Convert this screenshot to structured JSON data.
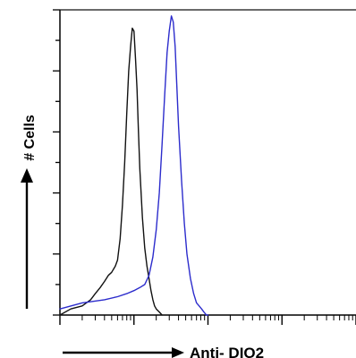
{
  "chart_data": {
    "type": "line",
    "title": "",
    "xlabel": "Anti- DIO2",
    "ylabel": "# Cells",
    "xscale": "log",
    "xlim": [
      1,
      10000
    ],
    "ylim": [
      0,
      100
    ],
    "grid": false,
    "legend": "none",
    "series": [
      {
        "color": "#111111",
        "x": [
          1,
          1.4,
          2,
          2.6,
          3,
          3.5,
          4,
          4.5,
          5,
          5.6,
          6,
          6.5,
          7,
          7.5,
          8,
          8.5,
          9,
          9.5,
          10,
          10.5,
          11,
          11.5,
          12,
          13,
          14,
          15,
          16,
          17,
          18,
          19,
          20,
          22,
          24
        ],
        "y": [
          0,
          2,
          3,
          5,
          7,
          9,
          11,
          13,
          14,
          16,
          18,
          25,
          36,
          50,
          66,
          80,
          88,
          94,
          93,
          84,
          74,
          60,
          48,
          32,
          22,
          16,
          12,
          8,
          5,
          3,
          2,
          1,
          0
        ]
      },
      {
        "color": "#2c2ccc",
        "x": [
          1,
          2,
          4,
          6,
          8,
          10,
          12,
          14,
          16,
          18,
          20,
          22,
          24,
          26,
          28,
          30,
          32,
          34,
          36,
          38,
          40,
          44,
          48,
          52,
          58,
          64,
          70,
          76,
          82,
          88,
          95,
          100
        ],
        "y": [
          2,
          4,
          5,
          6,
          7,
          8,
          9,
          10,
          13,
          19,
          28,
          40,
          56,
          72,
          86,
          93,
          98,
          96,
          88,
          75,
          62,
          44,
          30,
          20,
          12,
          7,
          4,
          3,
          2,
          1,
          0,
          0
        ]
      }
    ]
  }
}
